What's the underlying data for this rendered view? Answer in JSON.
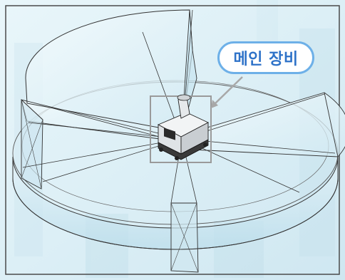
{
  "callout": {
    "label": "메인 장비"
  },
  "colors": {
    "background": "#dff1f7",
    "outline": "#333333",
    "callout_border": "#6db0e8",
    "callout_text": "#2e72c8",
    "highlight_box": "#9a9a9a"
  },
  "icons": [
    "device-icon",
    "arrow-icon"
  ]
}
